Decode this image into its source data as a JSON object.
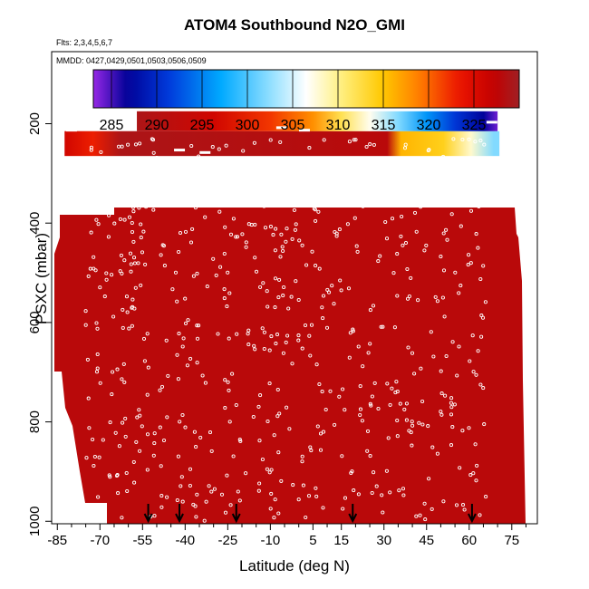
{
  "title": "ATOM4 Southbound N2O_GMI",
  "flights_label": "Flts: 2,3,4,5,6,7",
  "dates_label": "MMDD: 0427,0429,0501,0503,0506,0509",
  "chart_data": {
    "type": "heatmap",
    "title": "ATOM4 Southbound N2O_GMI",
    "xlabel": "Latitude (deg N)",
    "ylabel": "PSXC (mbar)",
    "xlim": [
      -87,
      84
    ],
    "ylim": [
      1005,
      55
    ],
    "y_reversed": true,
    "x_ticks": [
      -85,
      -70,
      -55,
      -40,
      -25,
      -10,
      5,
      15,
      30,
      45,
      60,
      75
    ],
    "y_ticks": [
      200,
      400,
      600,
      800,
      1000
    ],
    "colorbar": {
      "min": 283,
      "max": 330,
      "ticks": [
        285,
        290,
        295,
        300,
        305,
        310,
        315,
        320,
        325
      ]
    },
    "background_value": 328,
    "upper_band": {
      "pressure_range": [
        175,
        215
      ],
      "lat_range": [
        -57,
        70
      ],
      "points": [
        {
          "lat": -57,
          "value": 329
        },
        {
          "lat": -30,
          "value": 326
        },
        {
          "lat": -10,
          "value": 322
        },
        {
          "lat": 5,
          "value": 318
        },
        {
          "lat": 15,
          "value": 312
        },
        {
          "lat": 25,
          "value": 307
        },
        {
          "lat": 35,
          "value": 302
        },
        {
          "lat": 45,
          "value": 296
        },
        {
          "lat": 55,
          "value": 291
        },
        {
          "lat": 65,
          "value": 287
        },
        {
          "lat": 70,
          "value": 284
        }
      ]
    },
    "middle_band": {
      "pressure_range": [
        215,
        265
      ],
      "points": [
        {
          "lat": -85,
          "value": 326
        },
        {
          "lat": -75,
          "value": 323
        },
        {
          "lat": -65,
          "value": 329
        },
        {
          "lat": 30,
          "value": 328
        },
        {
          "lat": 35,
          "value": 316
        },
        {
          "lat": 50,
          "value": 314
        },
        {
          "lat": 60,
          "value": 308
        },
        {
          "lat": 68,
          "value": 302
        }
      ]
    },
    "flight_markers_lat": [
      -53,
      -42,
      -22,
      19,
      61
    ]
  }
}
